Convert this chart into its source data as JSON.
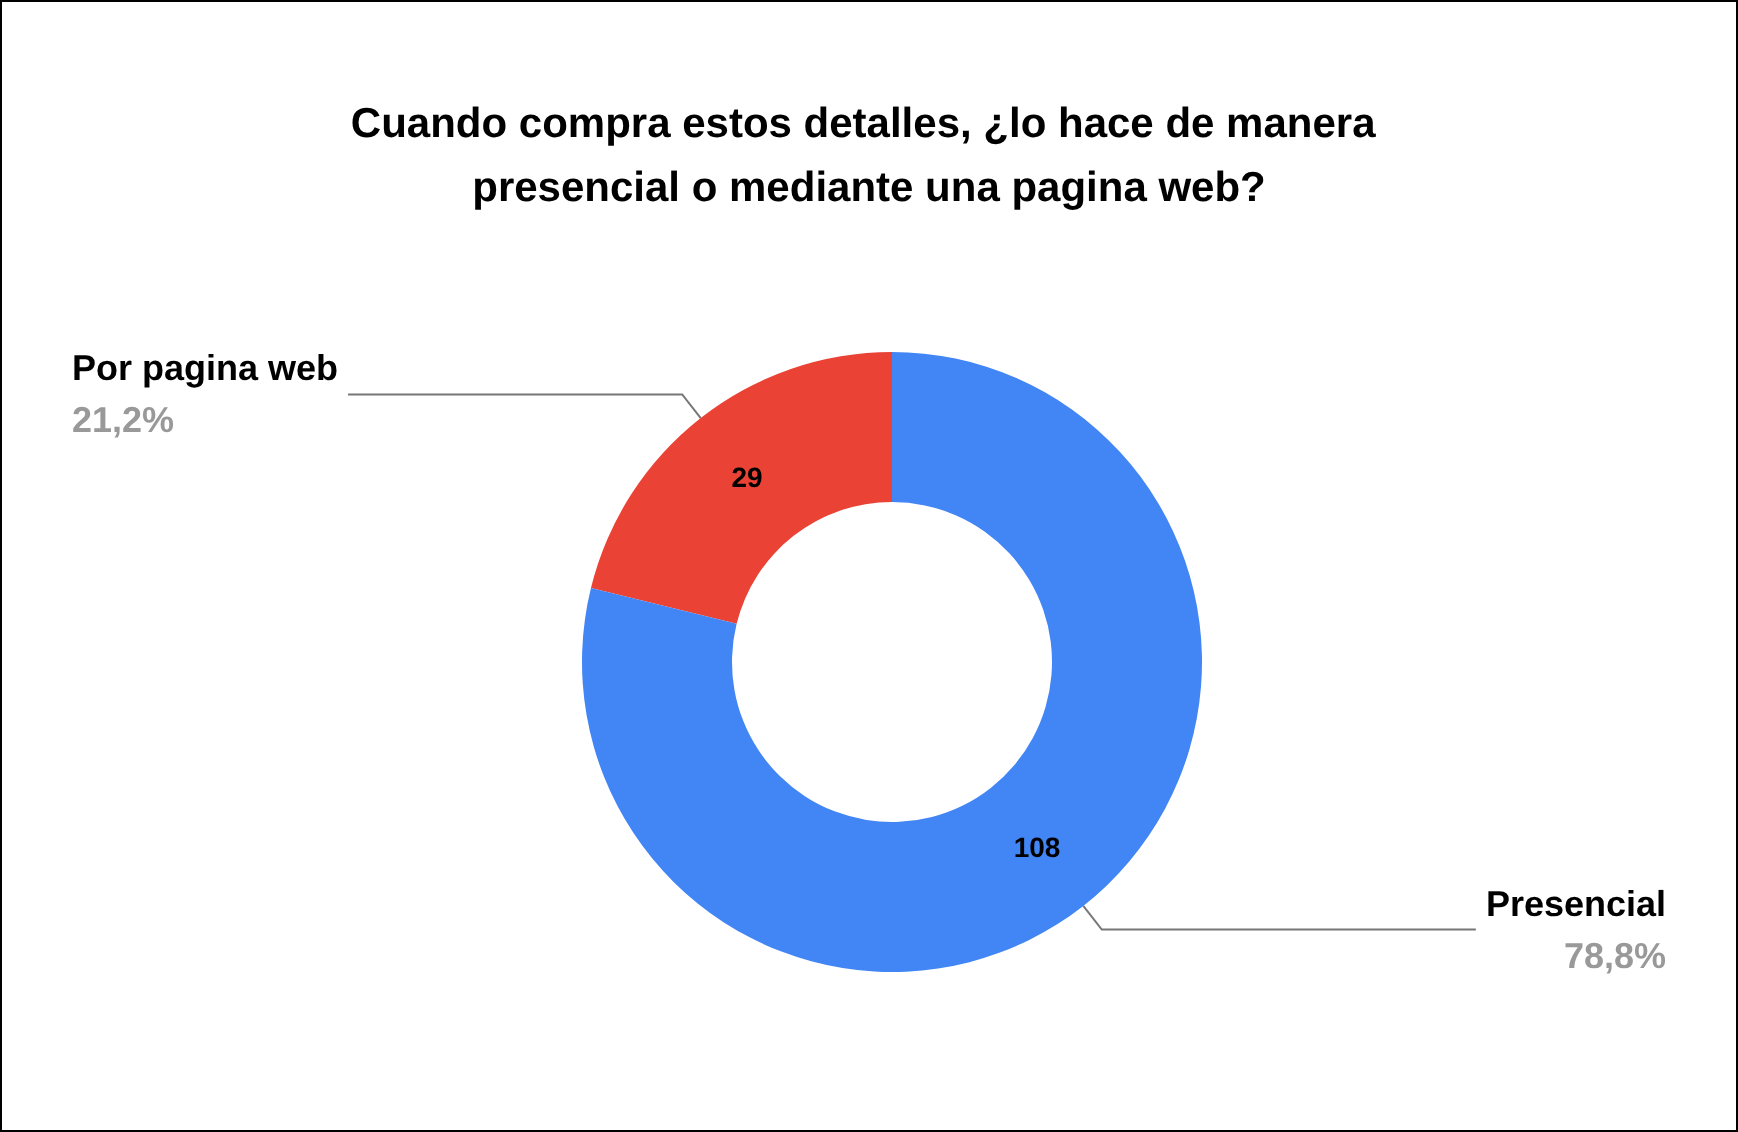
{
  "chart_data": {
    "type": "donut",
    "title": "Cuando compra estos detalles, ¿lo hace de manera presencial o mediante una pagina web?",
    "categories": [
      "Por pagina web",
      "Presencial"
    ],
    "values": [
      29,
      108
    ],
    "colors": [
      "#ea4335",
      "#4285f4"
    ],
    "data_labels": true,
    "annotations": [
      "21,2%",
      "78,8%"
    ],
    "legend": false
  }
}
